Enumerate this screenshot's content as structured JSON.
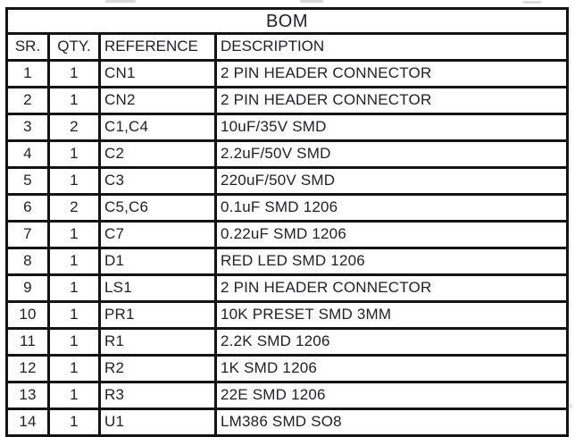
{
  "colors": {
    "border": "#141414",
    "text": "#212126",
    "background": "#ffffff",
    "artifact": "#d9d9d9"
  },
  "table": {
    "title": "BOM",
    "columns": [
      "SR.",
      "QTY.",
      "REFERENCE",
      "DESCRIPTION"
    ],
    "rows": [
      [
        "1",
        "1",
        "CN1",
        "2 PIN HEADER CONNECTOR"
      ],
      [
        "2",
        "1",
        "CN2",
        "2 PIN HEADER CONNECTOR"
      ],
      [
        "3",
        "2",
        "C1,C4",
        "10uF/35V SMD"
      ],
      [
        "4",
        "1",
        "C2",
        "2.2uF/50V SMD"
      ],
      [
        "5",
        "1",
        "C3",
        "220uF/50V SMD"
      ],
      [
        "6",
        "2",
        "C5,C6",
        "0.1uF SMD 1206"
      ],
      [
        "7",
        "1",
        "C7",
        "0.22uF SMD 1206"
      ],
      [
        "8",
        "1",
        "D1",
        "RED LED SMD 1206"
      ],
      [
        "9",
        "1",
        "LS1",
        "2 PIN HEADER CONNECTOR"
      ],
      [
        "10",
        "1",
        "PR1",
        "10K PRESET SMD 3MM"
      ],
      [
        "11",
        "1",
        "R1",
        "2.2K SMD 1206"
      ],
      [
        "12",
        "1",
        "R2",
        "1K SMD 1206"
      ],
      [
        "13",
        "1",
        "R3",
        "22E SMD 1206"
      ],
      [
        "14",
        "1",
        "U1",
        "LM386 SMD SO8"
      ]
    ]
  }
}
